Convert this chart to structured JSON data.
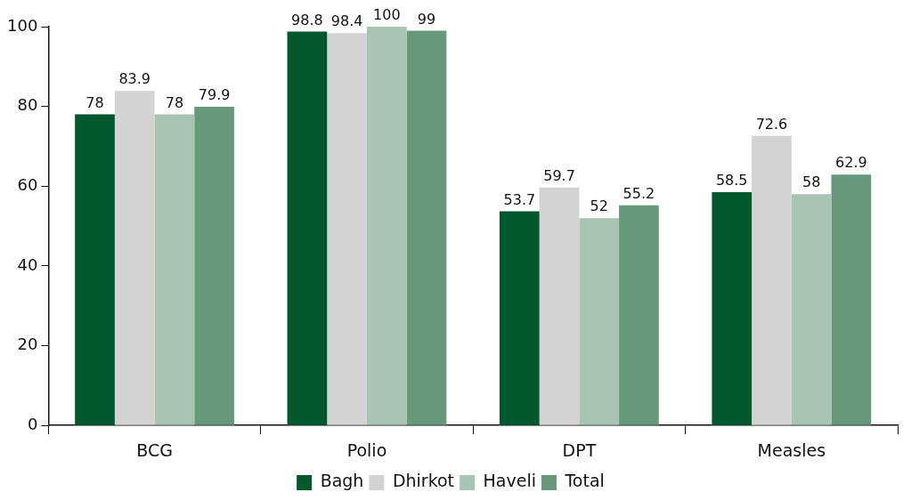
{
  "chart_data": {
    "type": "bar",
    "categories": [
      "BCG",
      "Polio",
      "DPT",
      "Measles"
    ],
    "series": [
      {
        "name": "Bagh",
        "color": "#00582c",
        "values": [
          78,
          98.8,
          53.7,
          58.5
        ]
      },
      {
        "name": "Dhirkot",
        "color": "#d3d3d3",
        "values": [
          83.9,
          98.4,
          59.7,
          72.6
        ]
      },
      {
        "name": "Haveli",
        "color": "#a8c5b3",
        "values": [
          78,
          100,
          52,
          58
        ]
      },
      {
        "name": "Total",
        "color": "#66997c",
        "values": [
          79.9,
          99,
          55.2,
          62.9
        ]
      }
    ],
    "ylim": [
      0,
      100
    ],
    "yticks": [
      0,
      20,
      40,
      60,
      80,
      100
    ],
    "grid": false,
    "legend": "bottom",
    "data_labels": true
  }
}
